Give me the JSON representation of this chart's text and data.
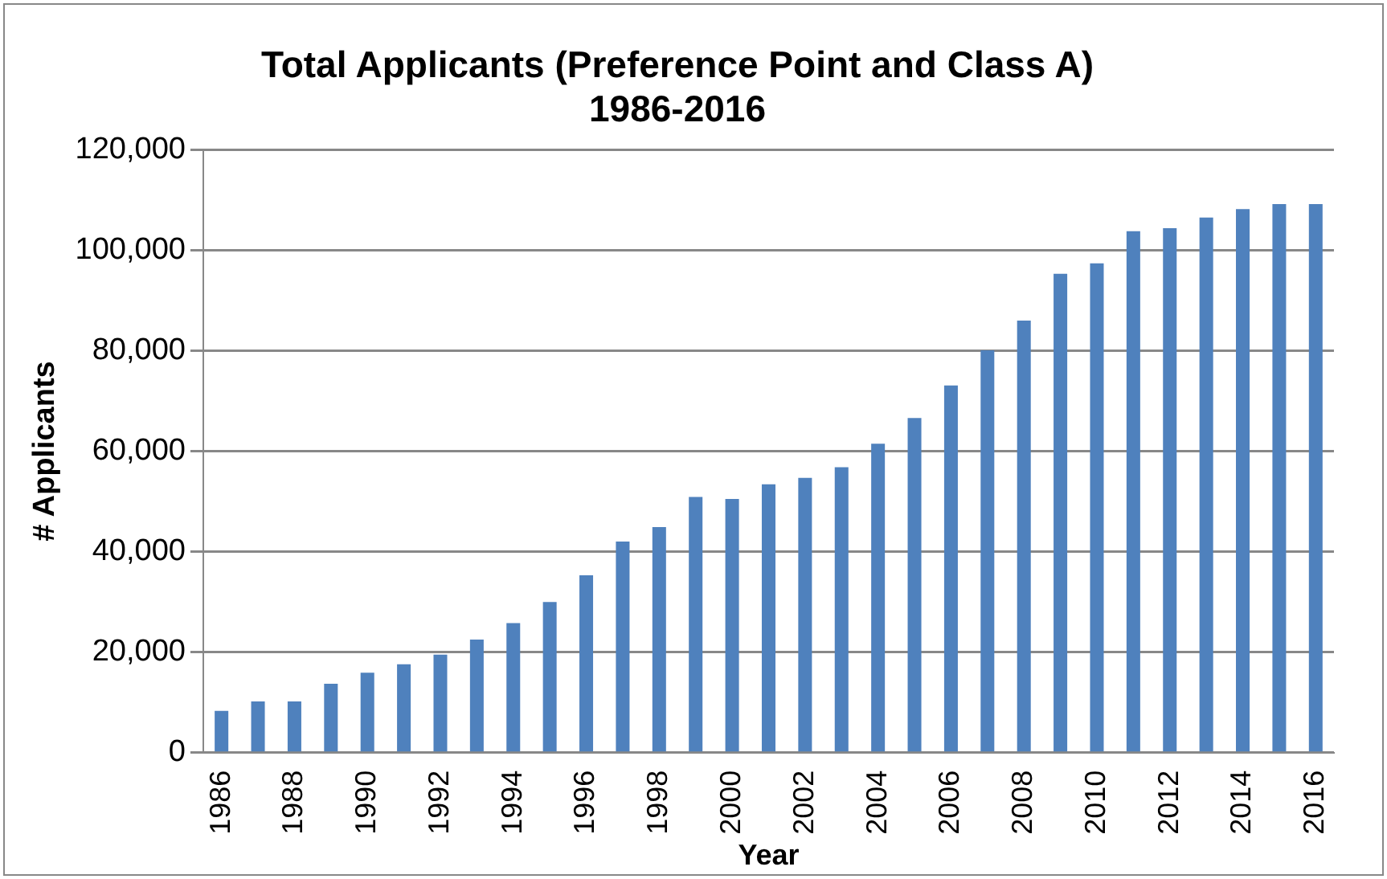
{
  "chart_data": {
    "type": "bar",
    "title": [
      "Total Applicants (Preference Point and Class A)",
      "1986-2016"
    ],
    "xlabel": "Year",
    "ylabel": "# Applicants",
    "categories": [
      "1986",
      null,
      "1988",
      null,
      "1990",
      null,
      "1992",
      null,
      "1994",
      null,
      "1996",
      null,
      "1998",
      null,
      "2000",
      null,
      "2002",
      null,
      "2004",
      null,
      "2006",
      null,
      "2008",
      null,
      "2010",
      null,
      "2012",
      null,
      "2014",
      null,
      "2016"
    ],
    "values": [
      8300,
      10200,
      10200,
      13700,
      15900,
      17600,
      19500,
      22500,
      25800,
      30000,
      35300,
      42000,
      44900,
      50900,
      50500,
      53400,
      54700,
      56800,
      61500,
      66600,
      73100,
      80100,
      86000,
      95300,
      97400,
      103800,
      104400,
      106500,
      108200,
      109200,
      109200
    ],
    "color": "#4f81bd",
    "ylim": [
      0,
      120000
    ],
    "yticks": [
      {
        "value": 0,
        "label": "0"
      },
      {
        "value": 20000,
        "label": "20,000"
      },
      {
        "value": 40000,
        "label": "40,000"
      },
      {
        "value": 60000,
        "label": "60,000"
      },
      {
        "value": 80000,
        "label": "80,000"
      },
      {
        "value": 100000,
        "label": "100,000"
      },
      {
        "value": 120000,
        "label": "120,000"
      }
    ],
    "grid": "y",
    "legend": false
  }
}
